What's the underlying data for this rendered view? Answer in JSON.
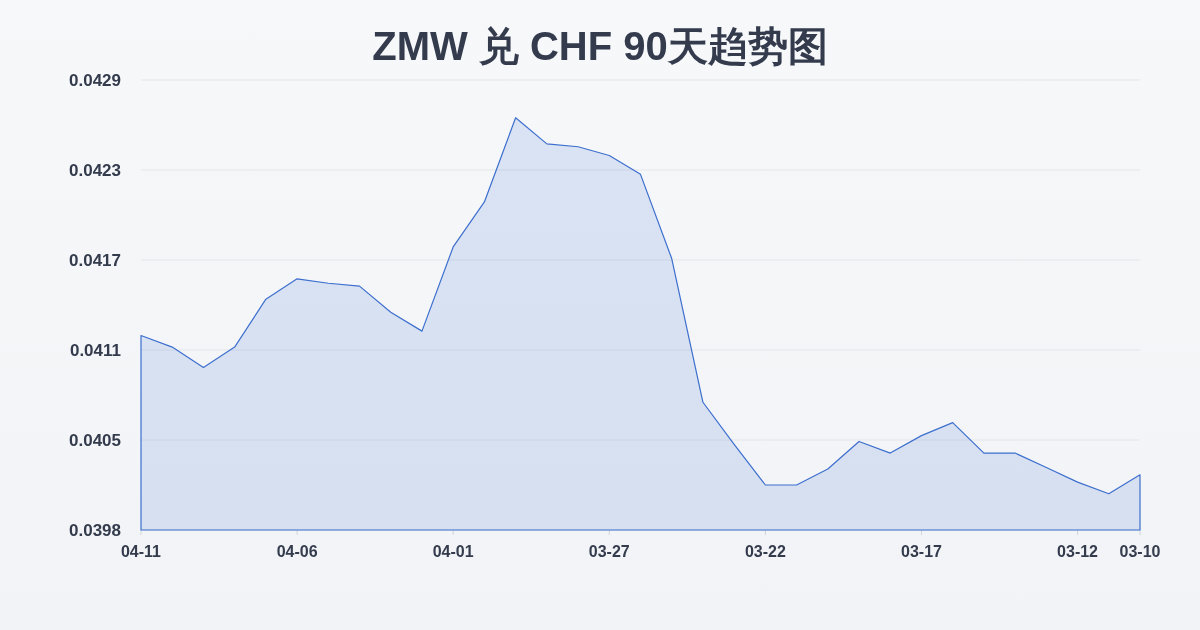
{
  "chart_data": {
    "type": "area",
    "title": "ZMW 兑 CHF 90天趋势图",
    "categories": [
      "04-11",
      null,
      null,
      null,
      null,
      "04-06",
      null,
      null,
      null,
      null,
      "04-01",
      null,
      null,
      null,
      null,
      "03-27",
      null,
      null,
      null,
      null,
      "03-22",
      null,
      null,
      null,
      null,
      "03-17",
      null,
      null,
      null,
      null,
      "03-12",
      null,
      "03-10"
    ],
    "series": [
      {
        "color": "#3d6fce",
        "values": [
          0.04118,
          0.0411,
          0.04096,
          0.0411,
          0.04143,
          0.04157,
          0.04154,
          0.04152,
          0.04134,
          0.04121,
          0.04179,
          0.0421,
          0.04268,
          0.0425,
          0.04248,
          0.04242,
          0.04229,
          0.04171,
          0.04072,
          0.04043,
          0.04015,
          0.04015,
          0.04026,
          0.04045,
          0.04037,
          0.04049,
          0.04058,
          0.04037,
          0.04037,
          0.04027,
          0.04017,
          0.04009,
          0.04022
        ]
      }
    ],
    "ylim": [
      0.03984,
      0.04294
    ],
    "yticks": [
      {
        "value": 0.03984,
        "label": "0.0398"
      },
      {
        "value": 0.04046,
        "label": "0.0405"
      },
      {
        "value": 0.04108,
        "label": "0.0411"
      },
      {
        "value": 0.0417,
        "label": "0.0417"
      },
      {
        "value": 0.04232,
        "label": "0.0423"
      },
      {
        "value": 0.04294,
        "label": "0.0429"
      }
    ],
    "grid": "y"
  }
}
